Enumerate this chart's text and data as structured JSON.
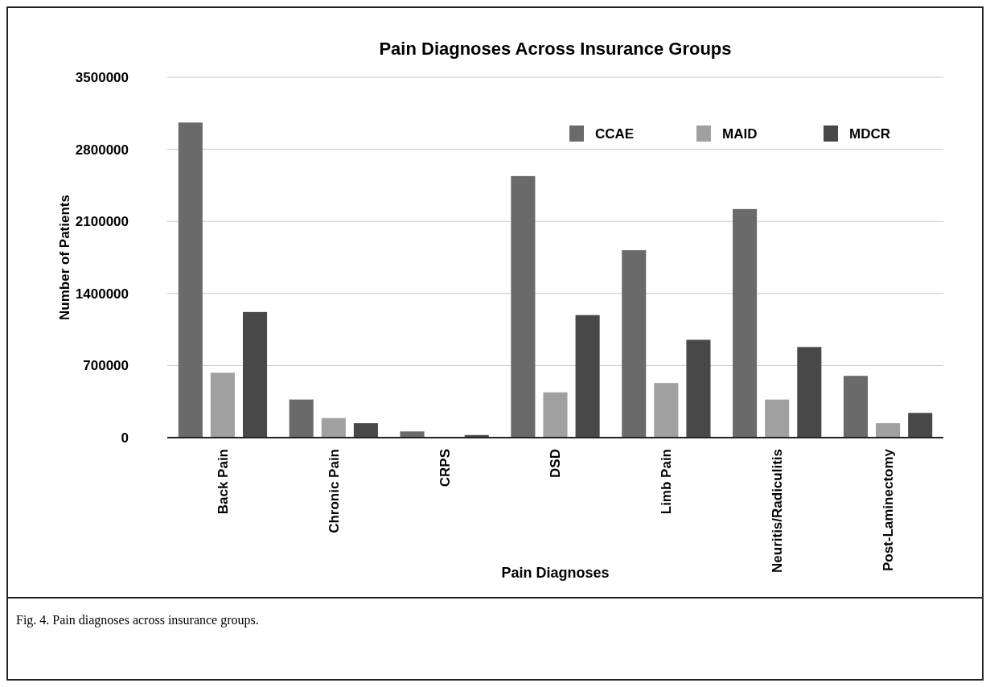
{
  "chart_data": {
    "type": "bar",
    "title": "Pain Diagnoses Across Insurance Groups",
    "xlabel": "Pain Diagnoses",
    "ylabel": "Number of Patients",
    "categories": [
      "Back Pain",
      "Chronic Pain",
      "CRPS",
      "DSD",
      "Limb Pain",
      "Neuritis/Radiculitis",
      "Post-Laminectomy"
    ],
    "series": [
      {
        "name": "CCAE",
        "color": "#6a6a6a",
        "values": [
          3060000,
          370000,
          60000,
          2540000,
          1820000,
          2220000,
          600000
        ]
      },
      {
        "name": "MAID",
        "color": "#a0a0a0",
        "values": [
          630000,
          190000,
          0,
          440000,
          530000,
          370000,
          140000
        ]
      },
      {
        "name": "MDCR",
        "color": "#484848",
        "values": [
          1220000,
          140000,
          25000,
          1190000,
          950000,
          880000,
          240000
        ]
      }
    ],
    "ylim": [
      0,
      3500000
    ],
    "yticks": [
      0,
      700000,
      1400000,
      2100000,
      2800000,
      3500000
    ],
    "grid": "y",
    "legend": "top right",
    "annotations": [
      "Fig. 4. Pain diagnoses across insurance groups."
    ]
  }
}
